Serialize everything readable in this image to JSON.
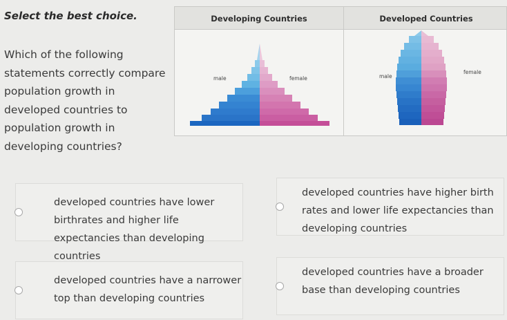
{
  "instruction": "Select the best choice.",
  "question": "Which of the following statements correctly compare population growth in developed countries to population growth in developing countries?",
  "table": {
    "developing": {
      "title": "Developing Countries",
      "male": "male",
      "female": "female"
    },
    "developed": {
      "title": "Developed Countries",
      "male": "male",
      "female": "female"
    }
  },
  "colors": {
    "male_dark": "#1b66c0",
    "male_light": "#8cc6e8",
    "female_dark": "#c44e98",
    "female_light": "#e6b7cf"
  },
  "choices": [
    {
      "text": "developed countries have lower birthrates and higher life expectancies than developing countries"
    },
    {
      "text": "developed countries have higher birth rates and lower life expectancies than developing countries"
    },
    {
      "text": "developed countries have a narrower top than developing countries"
    },
    {
      "text": "developed countries have a broader base than developing countries"
    }
  ]
}
